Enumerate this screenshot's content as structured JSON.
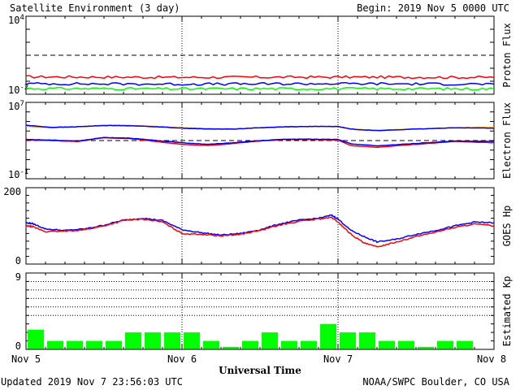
{
  "header": {
    "title": "Satellite Environment (3 day)",
    "begin_label": "Begin:  2019 Nov 5 0000 UTC"
  },
  "footer": {
    "updated": "Updated 2019 Nov  7 23:56:03 UTC",
    "source": "NOAA/SWPC Boulder, CO USA"
  },
  "colors": {
    "red": "#ff0000",
    "blue": "#0000ff",
    "green": "#00ff00",
    "orange": "#ffa500",
    "gray": "#cccccc"
  },
  "chart_data": [
    {
      "id": "proton",
      "type": "line",
      "ylabel": "Proton Flux",
      "yscale": "log",
      "ylim": [
        0.01,
        10000
      ],
      "yticks": [
        {
          "base": "10",
          "exp": "4"
        },
        {
          "base": "10",
          "exp": "-2"
        }
      ],
      "threshold_line": 10,
      "series": [
        {
          "color": "#ff0000",
          "x": [
            0,
            24,
            48,
            72
          ],
          "y": [
            0.22,
            0.2,
            0.21,
            0.2
          ]
        },
        {
          "color": "#0000ff",
          "x": [
            0,
            24,
            48,
            72
          ],
          "y": [
            0.065,
            0.06,
            0.065,
            0.06
          ]
        },
        {
          "color": "#00ff00",
          "x": [
            0,
            24,
            48,
            72
          ],
          "y": [
            0.028,
            0.026,
            0.027,
            0.026
          ]
        }
      ]
    },
    {
      "id": "electron",
      "type": "line",
      "ylabel": "Electron Flux",
      "yscale": "log",
      "ylim": [
        0.1,
        10000000
      ],
      "yticks": [
        {
          "base": "10",
          "exp": "7"
        },
        {
          "base": "10",
          "exp": "-1"
        }
      ],
      "threshold_line": 1000,
      "series": [
        {
          "color": "#ffa500",
          "x": [
            0,
            4,
            8,
            12,
            16,
            20,
            24,
            28,
            32,
            36,
            40,
            44,
            48,
            50,
            54,
            60,
            66,
            72
          ],
          "y": [
            32000,
            22000,
            28000,
            40000,
            38000,
            30000,
            22000,
            18000,
            17000,
            22000,
            28000,
            30000,
            28000,
            16000,
            12000,
            16000,
            22000,
            24000
          ]
        },
        {
          "color": "#0000ff",
          "x": [
            0,
            4,
            8,
            12,
            16,
            20,
            24,
            28,
            32,
            36,
            40,
            44,
            48,
            50,
            54,
            60,
            66,
            72
          ],
          "y": [
            40000,
            24000,
            28000,
            38000,
            36000,
            28000,
            20000,
            16000,
            16000,
            22000,
            28000,
            30000,
            30000,
            16000,
            11000,
            16000,
            22000,
            20000
          ]
        },
        {
          "color": "#ff0000",
          "x": [
            0,
            4,
            8,
            12,
            16,
            20,
            24,
            28,
            32,
            36,
            40,
            44,
            48,
            50,
            54,
            60,
            66,
            72
          ],
          "y": [
            1200,
            1000,
            800,
            2000,
            1600,
            800,
            400,
            300,
            500,
            900,
            1300,
            1300,
            1100,
            300,
            200,
            400,
            800,
            600
          ]
        },
        {
          "color": "#0000ff",
          "x": [
            0,
            4,
            8,
            12,
            16,
            20,
            24,
            28,
            32,
            36,
            40,
            44,
            48,
            50,
            54,
            60,
            66,
            72
          ],
          "y": [
            1300,
            1100,
            900,
            2100,
            1800,
            1000,
            600,
            400,
            600,
            1000,
            1400,
            1400,
            1300,
            450,
            280,
            500,
            900,
            800
          ]
        }
      ]
    },
    {
      "id": "hp",
      "type": "line",
      "ylabel": "GOES Hp",
      "yscale": "linear",
      "ylim": [
        0,
        200
      ],
      "ytick_labels": [
        "200",
        "0"
      ],
      "series": [
        {
          "color": "#0000ff",
          "x": [
            0,
            1,
            3,
            6,
            9,
            12,
            15,
            18,
            21,
            24,
            27,
            30,
            33,
            36,
            39,
            42,
            45,
            47,
            48,
            50,
            52,
            54,
            57,
            60,
            63,
            66,
            69,
            72
          ],
          "y": [
            108,
            106,
            92,
            88,
            92,
            102,
            115,
            120,
            114,
            90,
            82,
            76,
            80,
            90,
            105,
            115,
            120,
            128,
            118,
            88,
            72,
            58,
            65,
            78,
            88,
            100,
            110,
            108
          ]
        },
        {
          "color": "#ff0000",
          "x": [
            0,
            1,
            3,
            6,
            9,
            12,
            15,
            18,
            21,
            24,
            27,
            30,
            33,
            36,
            39,
            42,
            45,
            47,
            48,
            50,
            52,
            54,
            57,
            60,
            63,
            66,
            69,
            72
          ],
          "y": [
            100,
            98,
            85,
            86,
            90,
            100,
            114,
            118,
            110,
            80,
            78,
            74,
            78,
            88,
            102,
            112,
            118,
            122,
            110,
            78,
            55,
            45,
            58,
            72,
            84,
            96,
            105,
            100
          ]
        }
      ]
    },
    {
      "id": "kp",
      "type": "bar",
      "ylabel": "Estimated Kp",
      "ylim": [
        0,
        9
      ],
      "ytick_labels": [
        "9",
        "0"
      ],
      "gridlines": [
        4,
        5,
        6,
        7,
        8
      ],
      "bar_color": "#00ff00",
      "values": [
        2.33,
        1.0,
        1.0,
        1.0,
        1.0,
        2.0,
        2.0,
        2.0,
        2.0,
        1.0,
        0.3,
        1.0,
        2.0,
        1.0,
        1.0,
        3.0,
        2.0,
        2.0,
        1.0,
        1.0,
        0.3,
        1.0,
        1.0,
        0.0
      ]
    }
  ],
  "x_axis": {
    "label": "Universal Time",
    "tick_labels": [
      "Nov 5",
      "Nov 6",
      "Nov 7",
      "Nov 8"
    ]
  }
}
